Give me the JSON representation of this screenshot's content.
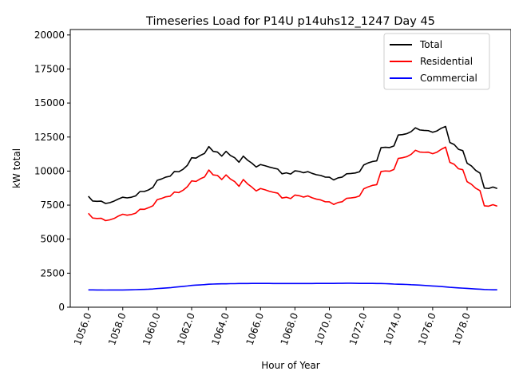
{
  "chart_data": {
    "type": "line",
    "title": "Timeseries Load for P14U p14uhs12_1247  Day 45",
    "xlabel": "Hour of Year",
    "ylabel": "kW total",
    "xlim": [
      1054.95,
      1080.55
    ],
    "ylim": [
      0,
      20400
    ],
    "x_tick_values": [
      1056,
      1058,
      1060,
      1062,
      1064,
      1066,
      1068,
      1070,
      1072,
      1074,
      1076,
      1078
    ],
    "x_tick_labels": [
      "1056.0",
      "1058.0",
      "1060.0",
      "1062.0",
      "1064.0",
      "1066.0",
      "1068.0",
      "1070.0",
      "1072.0",
      "1074.0",
      "1076.0",
      "1078.0"
    ],
    "y_tick_values": [
      0,
      2500,
      5000,
      7500,
      10000,
      12500,
      15000,
      17500,
      20000
    ],
    "y_tick_labels": [
      "0",
      "2500",
      "5000",
      "7500",
      "10000",
      "12500",
      "15000",
      "17500",
      "20000"
    ],
    "grid": false,
    "legend_position": "top-right",
    "x": [
      1056.0,
      1056.25,
      1056.5,
      1056.75,
      1057.0,
      1057.25,
      1057.5,
      1057.75,
      1058.0,
      1058.25,
      1058.5,
      1058.75,
      1059.0,
      1059.25,
      1059.5,
      1059.75,
      1060.0,
      1060.25,
      1060.5,
      1060.75,
      1061.0,
      1061.25,
      1061.5,
      1061.75,
      1062.0,
      1062.25,
      1062.5,
      1062.75,
      1063.0,
      1063.25,
      1063.5,
      1063.75,
      1064.0,
      1064.25,
      1064.5,
      1064.75,
      1065.0,
      1065.25,
      1065.5,
      1065.75,
      1066.0,
      1066.25,
      1066.5,
      1066.75,
      1067.0,
      1067.25,
      1067.5,
      1067.75,
      1068.0,
      1068.25,
      1068.5,
      1068.75,
      1069.0,
      1069.25,
      1069.5,
      1069.75,
      1070.0,
      1070.25,
      1070.5,
      1070.75,
      1071.0,
      1071.25,
      1071.5,
      1071.75,
      1072.0,
      1072.25,
      1072.5,
      1072.75,
      1073.0,
      1073.25,
      1073.5,
      1073.75,
      1074.0,
      1074.25,
      1074.5,
      1074.75,
      1075.0,
      1075.25,
      1075.5,
      1075.75,
      1076.0,
      1076.25,
      1076.5,
      1076.75,
      1077.0,
      1077.25,
      1077.5,
      1077.75,
      1078.0,
      1078.25,
      1078.5,
      1078.75,
      1079.0,
      1079.25,
      1079.5,
      1079.75
    ],
    "series": [
      {
        "name": "Total",
        "color": "#000000",
        "values": [
          8150,
          7800,
          7780,
          7790,
          7620,
          7680,
          7800,
          7950,
          8080,
          8030,
          8080,
          8180,
          8500,
          8500,
          8620,
          8800,
          9320,
          9420,
          9560,
          9620,
          9970,
          9950,
          10130,
          10420,
          10980,
          10950,
          11150,
          11300,
          11800,
          11450,
          11400,
          11100,
          11450,
          11150,
          10980,
          10650,
          11100,
          10800,
          10580,
          10300,
          10480,
          10400,
          10300,
          10220,
          10150,
          9800,
          9870,
          9780,
          10020,
          9980,
          9880,
          9960,
          9830,
          9730,
          9680,
          9560,
          9550,
          9350,
          9500,
          9560,
          9800,
          9820,
          9860,
          9950,
          10450,
          10600,
          10700,
          10750,
          11720,
          11750,
          11730,
          11850,
          12650,
          12680,
          12750,
          12900,
          13180,
          13020,
          12990,
          12970,
          12850,
          12950,
          13150,
          13280,
          12100,
          11950,
          11600,
          11500,
          10580,
          10380,
          10050,
          9850,
          8750,
          8720,
          8830,
          8720
        ]
      },
      {
        "name": "Residential",
        "color": "#ff0000",
        "values": [
          6900,
          6550,
          6520,
          6530,
          6360,
          6420,
          6520,
          6700,
          6830,
          6760,
          6810,
          6910,
          7200,
          7190,
          7310,
          7450,
          7900,
          7990,
          8110,
          8150,
          8460,
          8420,
          8590,
          8850,
          9280,
          9240,
          9430,
          9570,
          10080,
          9720,
          9680,
          9380,
          9720,
          9420,
          9230,
          8880,
          9380,
          9060,
          8820,
          8540,
          8720,
          8630,
          8520,
          8440,
          8380,
          8020,
          8080,
          7980,
          8240,
          8190,
          8090,
          8180,
          8040,
          7940,
          7880,
          7750,
          7740,
          7550,
          7690,
          7750,
          8000,
          8030,
          8070,
          8170,
          8700,
          8840,
          8950,
          9000,
          9970,
          10010,
          9990,
          10120,
          10930,
          10980,
          11060,
          11230,
          11530,
          11400,
          11380,
          11390,
          11280,
          11390,
          11600,
          11760,
          10640,
          10500,
          10170,
          10100,
          9220,
          9030,
          8740,
          8560,
          7450,
          7420,
          7530,
          7420
        ]
      },
      {
        "name": "Commercial",
        "color": "#0000ff",
        "values": [
          1270,
          1270,
          1265,
          1265,
          1260,
          1262,
          1262,
          1262,
          1265,
          1270,
          1280,
          1290,
          1300,
          1310,
          1320,
          1340,
          1370,
          1390,
          1410,
          1430,
          1470,
          1500,
          1530,
          1560,
          1600,
          1620,
          1640,
          1660,
          1690,
          1700,
          1710,
          1720,
          1720,
          1730,
          1730,
          1740,
          1740,
          1740,
          1745,
          1745,
          1745,
          1745,
          1745,
          1740,
          1740,
          1740,
          1740,
          1740,
          1740,
          1740,
          1740,
          1740,
          1740,
          1745,
          1745,
          1750,
          1750,
          1750,
          1755,
          1755,
          1760,
          1760,
          1755,
          1750,
          1750,
          1745,
          1745,
          1740,
          1740,
          1730,
          1720,
          1700,
          1690,
          1680,
          1670,
          1650,
          1640,
          1620,
          1600,
          1580,
          1560,
          1540,
          1520,
          1490,
          1460,
          1440,
          1420,
          1400,
          1380,
          1360,
          1340,
          1320,
          1300,
          1290,
          1280,
          1280
        ]
      }
    ]
  }
}
